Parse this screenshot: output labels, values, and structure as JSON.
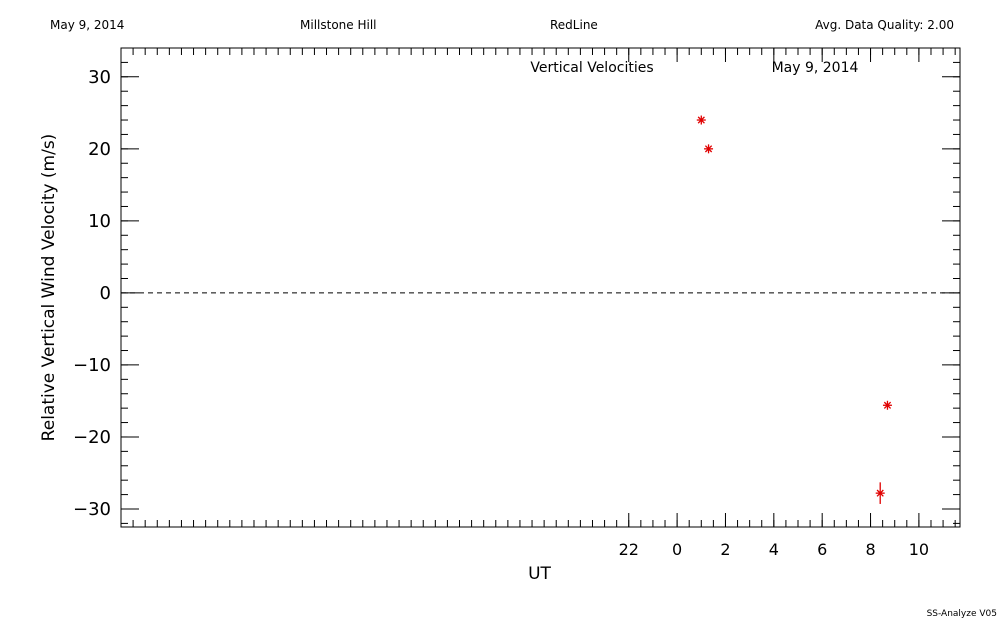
{
  "header": {
    "date": "May 9, 2014",
    "site": "Millstone Hill",
    "instrument": "RedLine",
    "quality": "Avg. Data Quality: 2.00"
  },
  "footer": {
    "version": "SS-Analyze V05"
  },
  "chart_data": {
    "type": "scatter",
    "title": "Vertical Velocities",
    "title_date": "May 9, 2014",
    "xlabel": "UT",
    "ylabel": "Relative Vertical Wind Velocity (m/s)",
    "xlim": [
      -23.0,
      11.7
    ],
    "ylim": [
      -32.5,
      34.0
    ],
    "x_ticks": [
      22,
      0,
      2,
      4,
      6,
      8,
      10
    ],
    "y_ticks": [
      30,
      20,
      10,
      0,
      -10,
      -20,
      -30
    ],
    "zero_line": true,
    "marker_color": "#e00000",
    "series": [
      {
        "points": [
          {
            "x": 1.0,
            "y": 24.0
          },
          {
            "x": 1.3,
            "y": 20.0
          },
          {
            "x": 8.4,
            "y": -27.8,
            "yerr": 1.5
          },
          {
            "x": 8.7,
            "y": -15.6
          }
        ]
      }
    ]
  }
}
